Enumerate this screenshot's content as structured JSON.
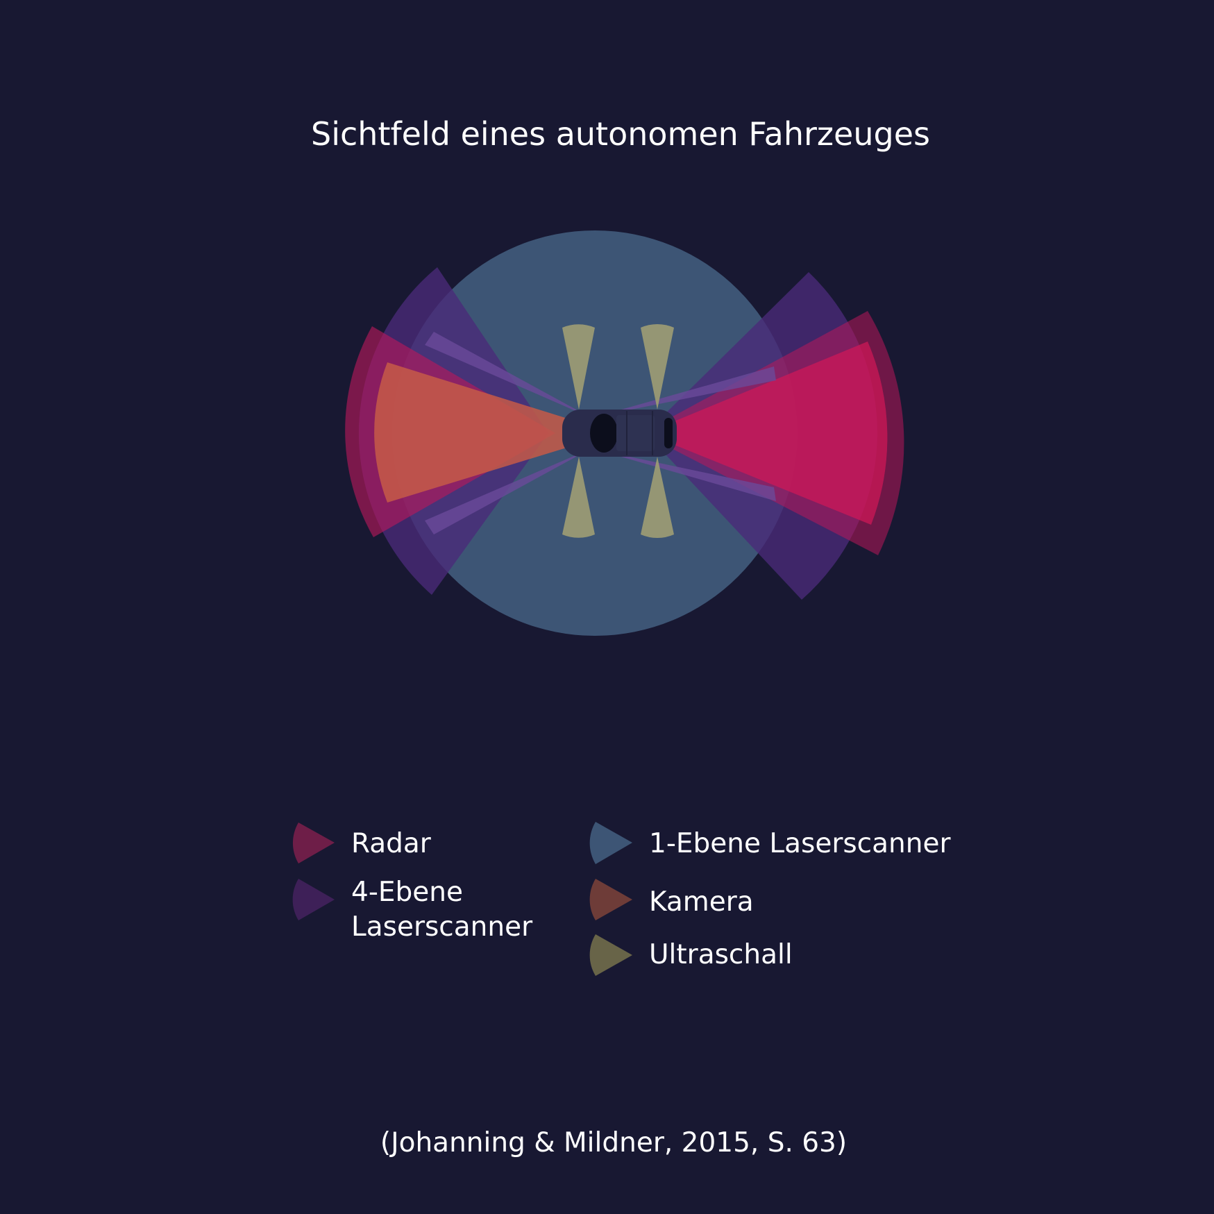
{
  "title": "Sichtfeld eines autonomen Fahrzeuges",
  "legend": {
    "radar": "Radar",
    "laser4": "4-Ebene",
    "laser4_line2": "Laserscanner",
    "laser1": "1-Ebene Laserscanner",
    "camera": "Kamera",
    "ultrasound": "Ultraschall"
  },
  "citation": "(Johanning & Mildner, 2015, S. 63)",
  "colors": {
    "background": "#181832",
    "laser1": "#3d5575",
    "laser4": "#3e2058",
    "radar": "#c8185a",
    "camera": "#ba5a4c",
    "ultrasound": "#9a9a74",
    "vehicle": "#2a2c4c"
  }
}
